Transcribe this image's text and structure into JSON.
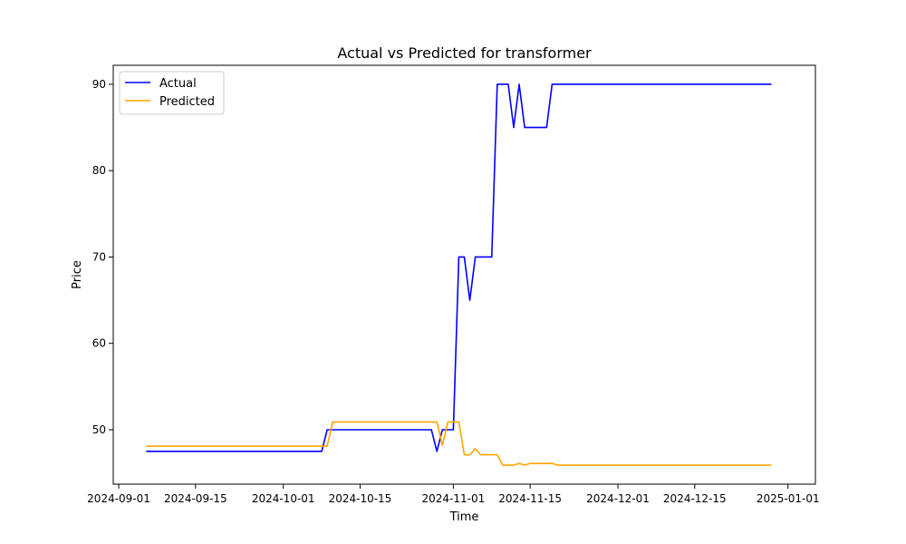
{
  "chart_data": {
    "type": "line",
    "title": "Actual vs Predicted for transformer",
    "xlabel": "Time",
    "ylabel": "Price",
    "xlim": [
      "2024-08-31",
      "2025-01-06"
    ],
    "ylim": [
      43.7,
      92.2
    ],
    "x_ticks": [
      "2024-09-01",
      "2024-09-15",
      "2024-10-01",
      "2024-10-15",
      "2024-11-01",
      "2024-11-15",
      "2024-12-01",
      "2024-12-15",
      "2025-01-01"
    ],
    "y_ticks": [
      50,
      60,
      70,
      80,
      90
    ],
    "grid": false,
    "legend": {
      "placement": "top-left",
      "entries": [
        "Actual",
        "Predicted"
      ]
    },
    "series": [
      {
        "name": "Actual",
        "color": "#0000ff",
        "points": [
          [
            "2024-09-06",
            47.5
          ],
          [
            "2024-10-08",
            47.5
          ],
          [
            "2024-10-09",
            50.0
          ],
          [
            "2024-10-28",
            50.0
          ],
          [
            "2024-10-29",
            47.5
          ],
          [
            "2024-10-30",
            50.0
          ],
          [
            "2024-11-01",
            50.0
          ],
          [
            "2024-11-02",
            70.0
          ],
          [
            "2024-11-03",
            70.0
          ],
          [
            "2024-11-04",
            65.0
          ],
          [
            "2024-11-05",
            70.0
          ],
          [
            "2024-11-08",
            70.0
          ],
          [
            "2024-11-09",
            90.0
          ],
          [
            "2024-11-11",
            90.0
          ],
          [
            "2024-11-12",
            85.0
          ],
          [
            "2024-11-13",
            90.0
          ],
          [
            "2024-11-14",
            85.0
          ],
          [
            "2024-11-18",
            85.0
          ],
          [
            "2024-11-19",
            90.0
          ],
          [
            "2024-12-29",
            90.0
          ]
        ]
      },
      {
        "name": "Predicted",
        "color": "#ffa500",
        "points": [
          [
            "2024-09-06",
            48.1
          ],
          [
            "2024-10-09",
            48.1
          ],
          [
            "2024-10-10",
            50.9
          ],
          [
            "2024-10-29",
            50.9
          ],
          [
            "2024-10-30",
            48.2
          ],
          [
            "2024-10-31",
            50.9
          ],
          [
            "2024-11-02",
            50.9
          ],
          [
            "2024-11-03",
            47.1
          ],
          [
            "2024-11-04",
            47.1
          ],
          [
            "2024-11-05",
            47.8
          ],
          [
            "2024-11-06",
            47.1
          ],
          [
            "2024-11-09",
            47.1
          ],
          [
            "2024-11-10",
            45.9
          ],
          [
            "2024-11-12",
            45.9
          ],
          [
            "2024-11-13",
            46.1
          ],
          [
            "2024-11-14",
            45.9
          ],
          [
            "2024-11-15",
            46.1
          ],
          [
            "2024-11-19",
            46.1
          ],
          [
            "2024-11-20",
            45.9
          ],
          [
            "2024-12-29",
            45.9
          ]
        ]
      }
    ]
  }
}
